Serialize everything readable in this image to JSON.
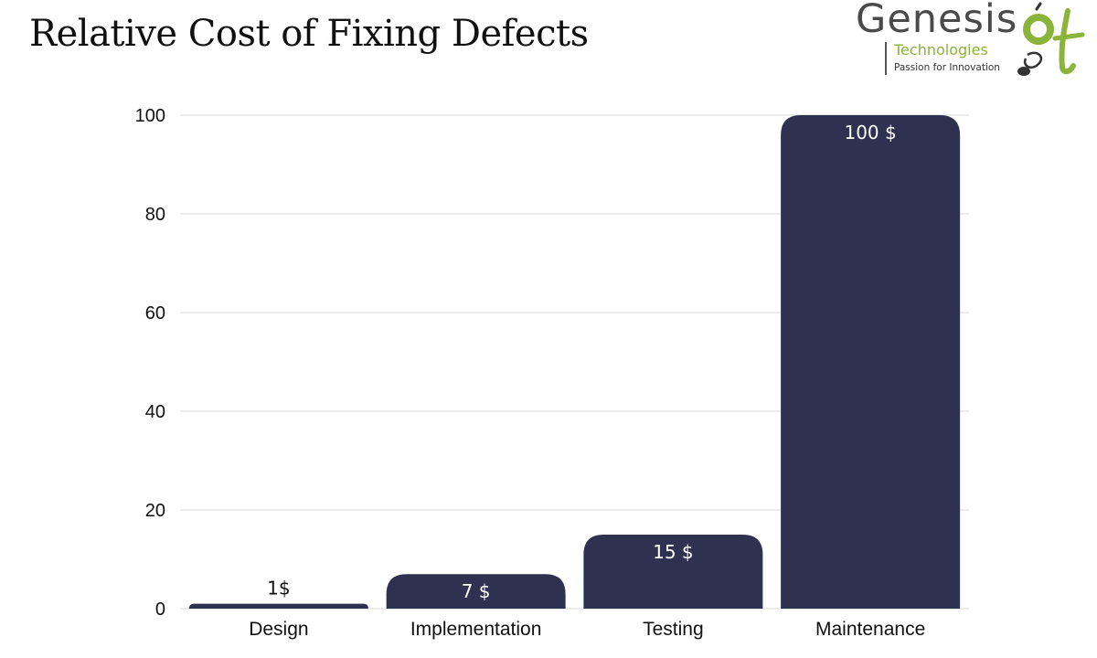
{
  "page": {
    "title": "Relative Cost of Fixing Defects"
  },
  "logo": {
    "name": "Genesis",
    "subtitle": "Technologies",
    "tagline": "Passion for Innovation",
    "colors": {
      "text": "#4a4a4a",
      "green": "#8cb33a"
    }
  },
  "chart_data": {
    "type": "bar",
    "categories": [
      "Design",
      "Implementation",
      "Testing",
      "Maintenance"
    ],
    "values": [
      1,
      7,
      15,
      100
    ],
    "data_labels": [
      "1$",
      "7 $",
      "15 $",
      "100 $"
    ],
    "xlabel": "",
    "ylabel": "",
    "ylim": [
      0,
      100
    ],
    "yticks": [
      0,
      20,
      40,
      60,
      80,
      100
    ],
    "grid": true,
    "legend": "none",
    "colors": {
      "bar": "#2e3150",
      "grid": "#d9d9d9",
      "label_inside": "#ffffff",
      "label_outside": "#111111"
    }
  }
}
